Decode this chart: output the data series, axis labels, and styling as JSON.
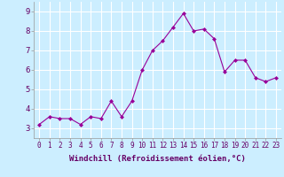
{
  "x": [
    0,
    1,
    2,
    3,
    4,
    5,
    6,
    7,
    8,
    9,
    10,
    11,
    12,
    13,
    14,
    15,
    16,
    17,
    18,
    19,
    20,
    21,
    22,
    23
  ],
  "y": [
    3.2,
    3.6,
    3.5,
    3.5,
    3.2,
    3.6,
    3.5,
    4.4,
    3.6,
    4.4,
    6.0,
    7.0,
    7.5,
    8.2,
    8.9,
    8.0,
    8.1,
    7.6,
    5.9,
    6.5,
    6.5,
    5.6,
    5.4,
    5.6
  ],
  "line_color": "#990099",
  "marker": "D",
  "marker_size": 2,
  "bg_color": "#cceeff",
  "grid_color": "#ffffff",
  "xlabel": "Windchill (Refroidissement éolien,°C)",
  "ylabel": "",
  "title": "",
  "xlim": [
    -0.5,
    23.5
  ],
  "ylim": [
    2.5,
    9.5
  ],
  "yticks": [
    3,
    4,
    5,
    6,
    7,
    8,
    9
  ],
  "xticks": [
    0,
    1,
    2,
    3,
    4,
    5,
    6,
    7,
    8,
    9,
    10,
    11,
    12,
    13,
    14,
    15,
    16,
    17,
    18,
    19,
    20,
    21,
    22,
    23
  ],
  "xtick_labels": [
    "0",
    "1",
    "2",
    "3",
    "4",
    "5",
    "6",
    "7",
    "8",
    "9",
    "10",
    "11",
    "12",
    "13",
    "14",
    "15",
    "16",
    "17",
    "18",
    "19",
    "20",
    "21",
    "22",
    "23"
  ],
  "label_color": "#660066",
  "tick_label_color": "#660066",
  "xlabel_fontsize": 6.5,
  "ytick_fontsize": 6.5,
  "xtick_fontsize": 5.5
}
